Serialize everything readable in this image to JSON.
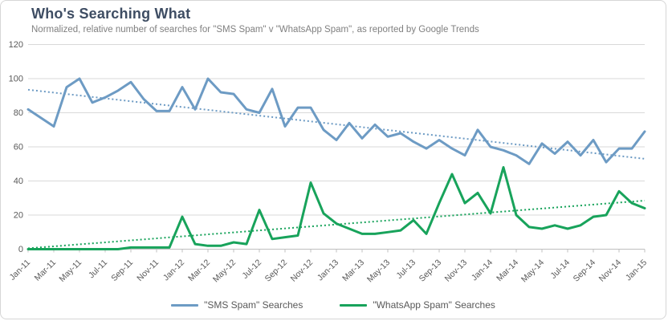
{
  "header": {
    "title": "Who's Searching What",
    "subtitle": "Normalized, relative number of searches for \"SMS Spam\" v \"WhatsApp Spam\", as reported by Google Trends"
  },
  "colors": {
    "sms": "#6d9bc4",
    "whatsapp": "#18a35b",
    "title_text": "#3e4d63",
    "subtitle_text": "#808080",
    "axis_text": "#595959",
    "gridline": "#d9d9d9",
    "axis_line": "#bfbfbf"
  },
  "chart_data": {
    "type": "line",
    "title": "Who's Searching What",
    "subtitle": "Normalized, relative number of searches for \"SMS Spam\" v \"WhatsApp Spam\", as reported by Google Trends",
    "x": [
      "Jan-11",
      "Feb-11",
      "Mar-11",
      "Apr-11",
      "May-11",
      "Jun-11",
      "Jul-11",
      "Aug-11",
      "Sep-11",
      "Oct-11",
      "Nov-11",
      "Dec-11",
      "Jan-12",
      "Feb-12",
      "Mar-12",
      "Apr-12",
      "May-12",
      "Jun-12",
      "Jul-12",
      "Aug-12",
      "Sep-12",
      "Oct-12",
      "Nov-12",
      "Dec-12",
      "Jan-13",
      "Feb-13",
      "Mar-13",
      "Apr-13",
      "May-13",
      "Jun-13",
      "Jul-13",
      "Aug-13",
      "Sep-13",
      "Oct-13",
      "Nov-13",
      "Dec-13",
      "Jan-14",
      "Feb-14",
      "Mar-14",
      "Apr-14",
      "May-14",
      "Jun-14",
      "Jul-14",
      "Aug-14",
      "Sep-14",
      "Oct-14",
      "Nov-14",
      "Dec-14",
      "Jan-15"
    ],
    "x_tick_labels": [
      "Jan-11",
      "Mar-11",
      "May-11",
      "Jul-11",
      "Sep-11",
      "Nov-11",
      "Jan-12",
      "Mar-12",
      "May-12",
      "Jul-12",
      "Sep-12",
      "Nov-12",
      "Jan-13",
      "Mar-13",
      "May-13",
      "Jul-13",
      "Sep-13",
      "Nov-13",
      "Jan-14",
      "Mar-14",
      "May-14",
      "Jul-14",
      "Sep-14",
      "Nov-14",
      "Jan-15"
    ],
    "y_ticks": [
      120,
      100,
      80,
      60,
      40,
      20,
      0
    ],
    "ylim": [
      0,
      120
    ],
    "grid": true,
    "legend_position": "bottom",
    "series": [
      {
        "name": "\"SMS Spam\" Searches",
        "color": "#6d9bc4",
        "values": [
          82,
          77,
          72,
          95,
          100,
          86,
          89,
          93,
          98,
          88,
          81,
          81,
          95,
          82,
          100,
          92,
          91,
          82,
          80,
          94,
          72,
          83,
          83,
          70,
          64,
          74,
          65,
          73,
          66,
          68,
          63,
          59,
          64,
          59,
          55,
          70,
          60,
          58,
          55,
          50,
          62,
          56,
          63,
          55,
          64,
          51,
          59,
          59,
          69
        ]
      },
      {
        "name": "\"WhatsApp Spam\" Searches",
        "color": "#18a35b",
        "values": [
          0,
          0,
          0,
          0,
          0,
          0,
          0,
          0,
          1,
          1,
          1,
          1,
          19,
          3,
          2,
          2,
          4,
          3,
          23,
          6,
          7,
          8,
          39,
          21,
          15,
          12,
          9,
          9,
          10,
          11,
          17,
          9,
          27,
          44,
          27,
          33,
          21,
          48,
          20,
          13,
          12,
          14,
          12,
          14,
          19,
          20,
          34,
          27,
          24
        ]
      }
    ],
    "trendlines": [
      {
        "series": "\"SMS Spam\" Searches",
        "color": "#6d9bc4",
        "start_value": 93.5,
        "end_value": 53
      },
      {
        "series": "\"WhatsApp Spam\" Searches",
        "color": "#18a35b",
        "start_value": 0.5,
        "end_value": 28.5
      }
    ]
  }
}
